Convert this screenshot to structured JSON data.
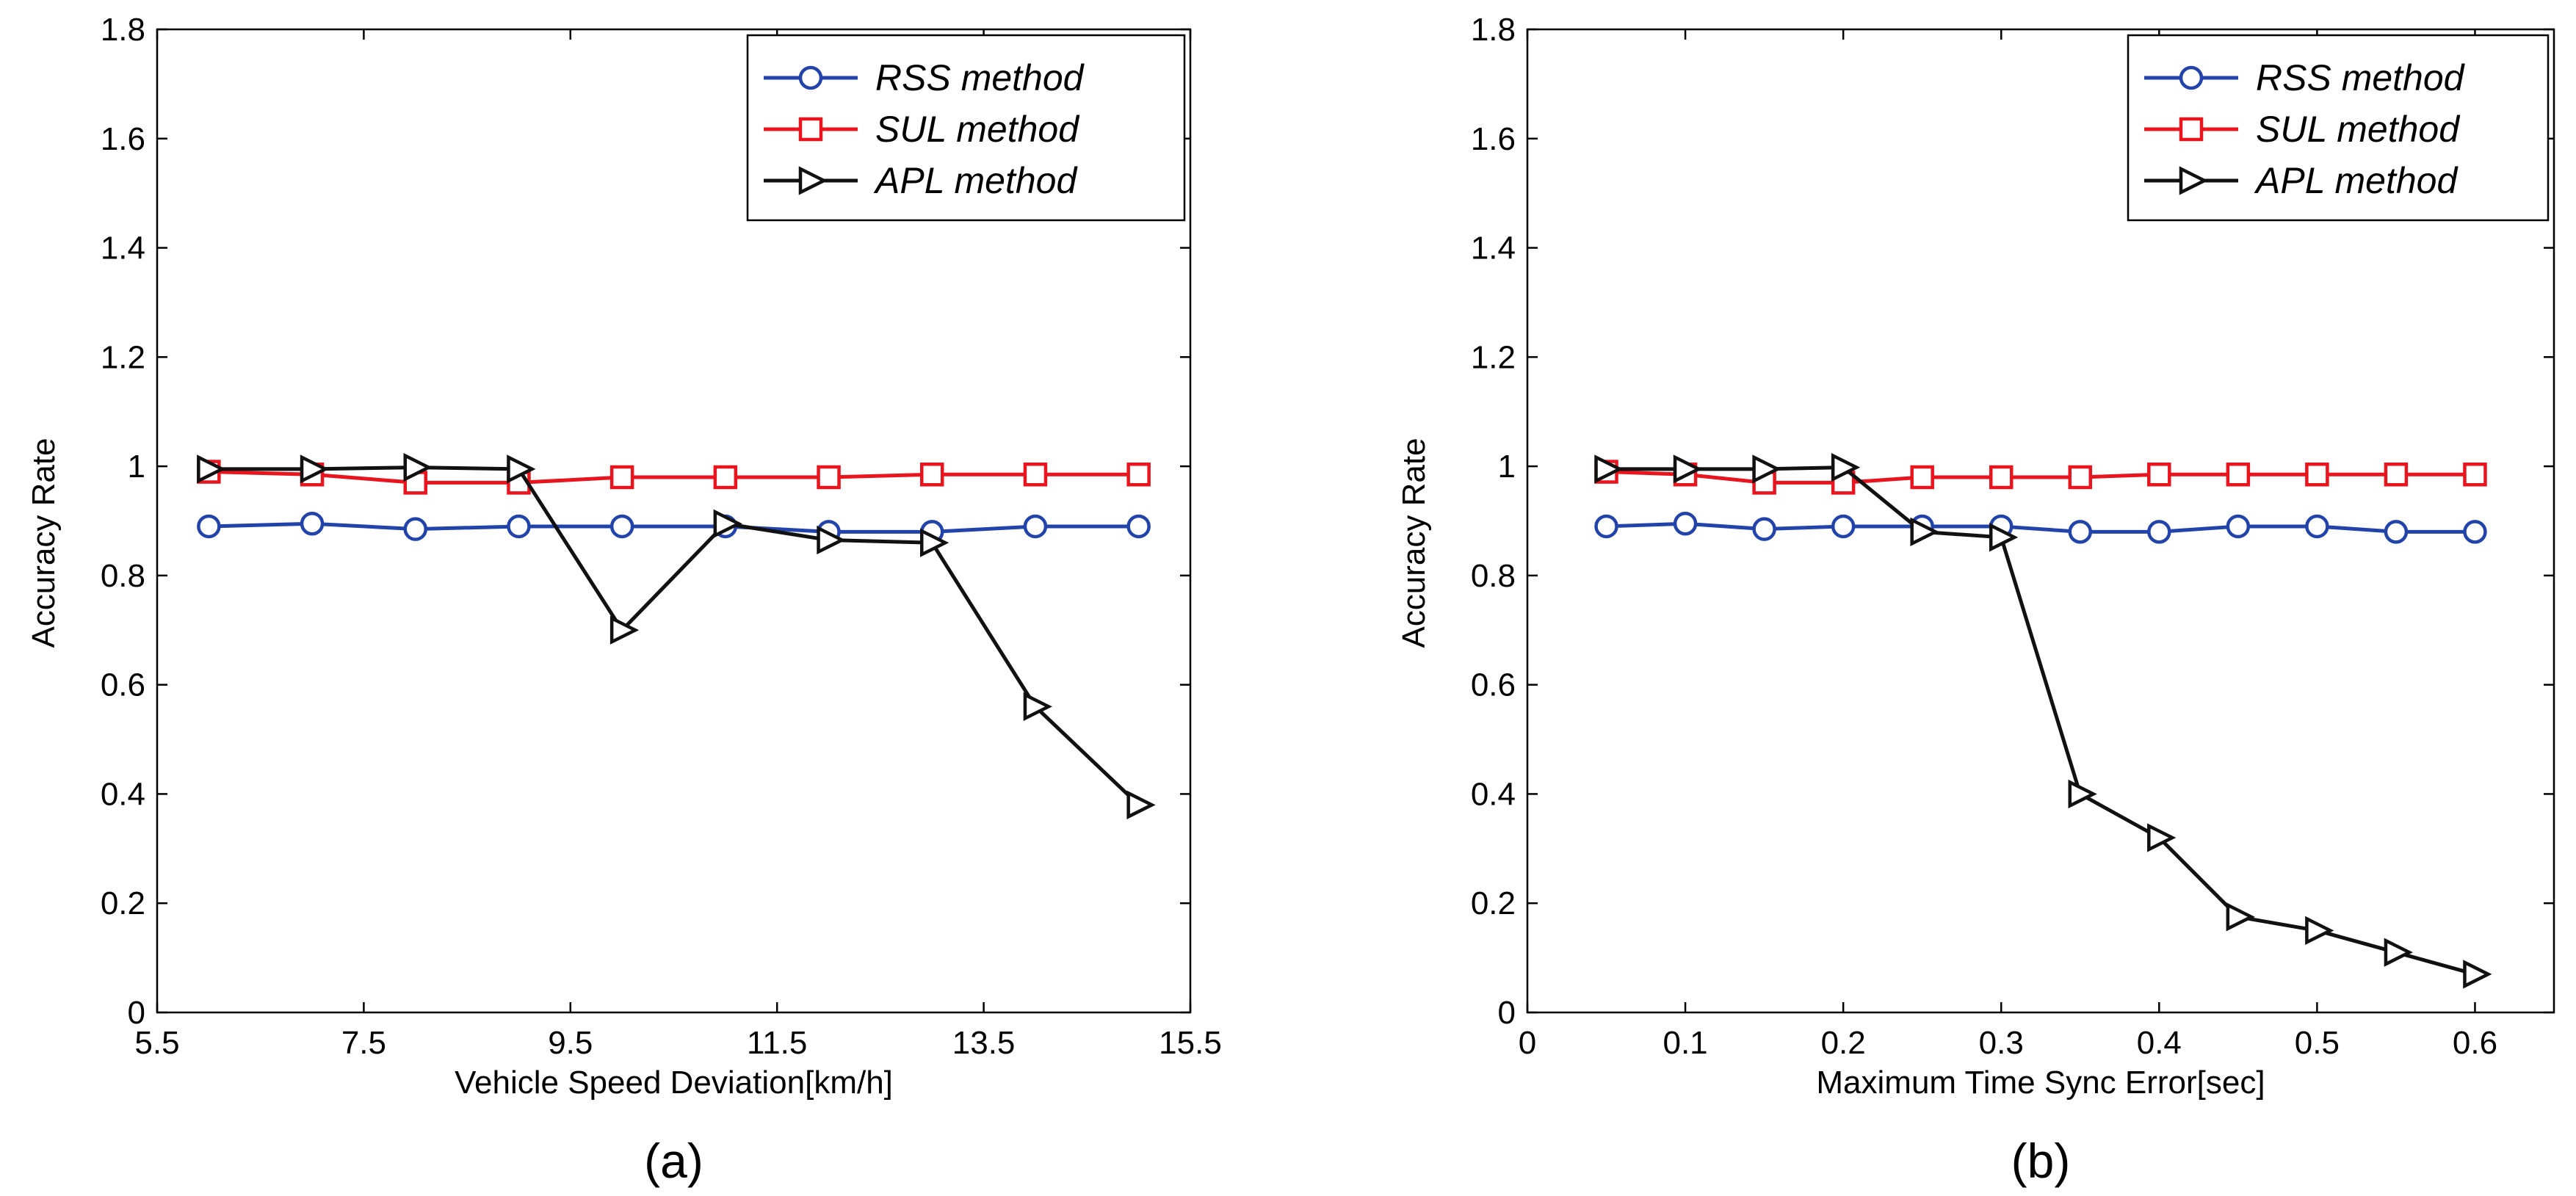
{
  "chart_data": [
    {
      "type": "line",
      "caption": "(a)",
      "xlabel": "Vehicle Speed Deviation[km/h]",
      "ylabel": "Accuracy Rate",
      "xlim": [
        5.5,
        15.5
      ],
      "ylim": [
        0,
        1.8
      ],
      "xticks": [
        5.5,
        7.5,
        9.5,
        11.5,
        13.5,
        15.5
      ],
      "xtick_labels": [
        "5.5",
        "7.5",
        "9.5",
        "11.5",
        "13.5",
        "15.5"
      ],
      "yticks": [
        0,
        0.2,
        0.4,
        0.6,
        0.8,
        1,
        1.2,
        1.4,
        1.6,
        1.8
      ],
      "ytick_labels": [
        "0",
        "0.2",
        "0.4",
        "0.6",
        "0.8",
        "1",
        "1.2",
        "1.4",
        "1.6",
        "1.8"
      ],
      "grid": false,
      "legend_position": "top-right",
      "x": [
        6,
        7,
        8,
        9,
        10,
        11,
        12,
        13,
        14,
        15
      ],
      "series": [
        {
          "name": "RSS method",
          "color": "#2244aa",
          "marker": "circle",
          "values": [
            0.89,
            0.895,
            0.885,
            0.89,
            0.89,
            0.89,
            0.88,
            0.88,
            0.89,
            0.89
          ]
        },
        {
          "name": "SUL method",
          "color": "#e8141e",
          "marker": "square",
          "values": [
            0.99,
            0.985,
            0.97,
            0.97,
            0.98,
            0.98,
            0.98,
            0.985,
            0.985,
            0.985
          ]
        },
        {
          "name": "APL method",
          "color": "#111111",
          "marker": "triangle-right",
          "values": [
            0.995,
            0.995,
            0.998,
            0.995,
            0.7,
            0.895,
            0.865,
            0.86,
            0.56,
            0.38
          ]
        }
      ]
    },
    {
      "type": "line",
      "caption": "(b)",
      "xlabel": "Maximum Time Sync Error[sec]",
      "ylabel": "Accuracy Rate",
      "xlim": [
        0,
        0.65
      ],
      "ylim": [
        0,
        1.8
      ],
      "xticks": [
        0,
        0.1,
        0.2,
        0.3,
        0.4,
        0.5,
        0.6
      ],
      "xtick_labels": [
        "0",
        "0.1",
        "0.2",
        "0.3",
        "0.4",
        "0.5",
        "0.6"
      ],
      "yticks": [
        0,
        0.2,
        0.4,
        0.6,
        0.8,
        1,
        1.2,
        1.4,
        1.6,
        1.8
      ],
      "ytick_labels": [
        "0",
        "0.2",
        "0.4",
        "0.6",
        "0.8",
        "1",
        "1.2",
        "1.4",
        "1.6",
        "1.8"
      ],
      "grid": false,
      "legend_position": "top-right",
      "x": [
        0.05,
        0.1,
        0.15,
        0.2,
        0.25,
        0.3,
        0.35,
        0.4,
        0.45,
        0.5,
        0.55,
        0.6
      ],
      "series": [
        {
          "name": "RSS method",
          "color": "#2244aa",
          "marker": "circle",
          "values": [
            0.89,
            0.895,
            0.885,
            0.89,
            0.89,
            0.89,
            0.88,
            0.88,
            0.89,
            0.89,
            0.88,
            0.88
          ]
        },
        {
          "name": "SUL method",
          "color": "#e8141e",
          "marker": "square",
          "values": [
            0.99,
            0.985,
            0.97,
            0.97,
            0.98,
            0.98,
            0.98,
            0.985,
            0.985,
            0.985,
            0.985,
            0.985
          ]
        },
        {
          "name": "APL method",
          "color": "#111111",
          "marker": "triangle-right",
          "values": [
            0.995,
            0.995,
            0.995,
            0.998,
            0.88,
            0.87,
            0.4,
            0.32,
            0.175,
            0.15,
            0.11,
            0.07
          ]
        }
      ]
    }
  ]
}
